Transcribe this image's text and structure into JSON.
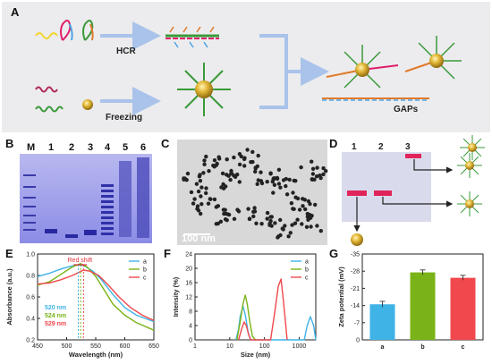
{
  "panels": {
    "A": "A",
    "B": "B",
    "C": "C",
    "D": "D",
    "E": "E",
    "F": "F",
    "G": "G"
  },
  "panelA": {
    "hcr": "HCR",
    "freezing": "Freezing",
    "gaps": "GAPs"
  },
  "panelB": {
    "lanes": [
      "M",
      "1",
      "2",
      "3",
      "4",
      "5",
      "6"
    ]
  },
  "panelC": {
    "scale": "100 nm"
  },
  "panelD": {
    "lanes": [
      "1",
      "2",
      "3"
    ]
  },
  "colors": {
    "a": "#3fb3e6",
    "b": "#7ab317",
    "c": "#f0484d",
    "gold": "#c9a227",
    "blueArrow": "#a9c3ea"
  },
  "chart_data": [
    {
      "type": "line",
      "panel": "E",
      "xlabel": "Wavelength (nm)",
      "ylabel": "Absorbance (a.u.)",
      "xlim": [
        450,
        650
      ],
      "ylim": [
        0.2,
        1.0
      ],
      "xticks": [
        450,
        500,
        550,
        600,
        650
      ],
      "yticks": [
        0.2,
        0.4,
        0.6,
        0.8,
        1.0
      ],
      "annotation": "Red shift",
      "peak_labels": [
        "520 nm",
        "524 nm",
        "529 nm"
      ],
      "legend": [
        "a",
        "b",
        "c"
      ],
      "series": [
        {
          "name": "a",
          "x": [
            450,
            470,
            490,
            510,
            520,
            530,
            545,
            560,
            580,
            600,
            620,
            650
          ],
          "y": [
            0.79,
            0.82,
            0.86,
            0.89,
            0.9,
            0.89,
            0.84,
            0.76,
            0.62,
            0.5,
            0.43,
            0.37
          ]
        },
        {
          "name": "b",
          "x": [
            450,
            470,
            490,
            510,
            524,
            535,
            550,
            565,
            580,
            600,
            620,
            650
          ],
          "y": [
            0.71,
            0.74,
            0.81,
            0.88,
            0.91,
            0.88,
            0.79,
            0.66,
            0.53,
            0.43,
            0.36,
            0.29
          ]
        },
        {
          "name": "c",
          "x": [
            450,
            470,
            490,
            510,
            529,
            540,
            555,
            570,
            590,
            610,
            630,
            650
          ],
          "y": [
            0.72,
            0.73,
            0.76,
            0.8,
            0.85,
            0.84,
            0.8,
            0.72,
            0.6,
            0.5,
            0.43,
            0.38
          ]
        }
      ]
    },
    {
      "type": "line",
      "panel": "F",
      "xlabel": "Size (nm)",
      "ylabel": "Intensity (%)",
      "xscale": "log",
      "xlim": [
        1,
        3000
      ],
      "ylim": [
        0,
        24
      ],
      "xticks": [
        1,
        10,
        100,
        1000
      ],
      "yticks": [
        0,
        4,
        8,
        12,
        16,
        20,
        24
      ],
      "legend": [
        "a",
        "b",
        "c"
      ],
      "series": [
        {
          "name": "a",
          "x": [
            15,
            18,
            20,
            24,
            28,
            34,
            40,
            1400,
            1700,
            2100,
            2600,
            3000
          ],
          "y": [
            0,
            3,
            6.5,
            9.5,
            7,
            2,
            0,
            0,
            4,
            6.5,
            4,
            0
          ]
        },
        {
          "name": "b",
          "x": [
            16,
            20,
            24,
            28,
            32,
            38,
            45,
            55
          ],
          "y": [
            0,
            5,
            10,
            12.5,
            10,
            5,
            1,
            0
          ]
        },
        {
          "name": "c",
          "x": [
            18,
            22,
            26,
            30,
            35,
            40,
            150,
            200,
            250,
            300,
            360,
            450
          ],
          "y": [
            0,
            3,
            5,
            4,
            1.5,
            0,
            0,
            8,
            15,
            17,
            10,
            0
          ]
        }
      ]
    },
    {
      "type": "bar",
      "panel": "G",
      "ylabel": "Zeta potential (mV)",
      "categories": [
        "a",
        "b",
        "c"
      ],
      "values": [
        -14.5,
        -27.5,
        -25.3
      ],
      "errors": [
        1.2,
        1.0,
        1.0
      ],
      "ylim": [
        0,
        -35
      ],
      "yticks": [
        0,
        -7,
        -14,
        -21,
        -28,
        -35
      ]
    }
  ]
}
